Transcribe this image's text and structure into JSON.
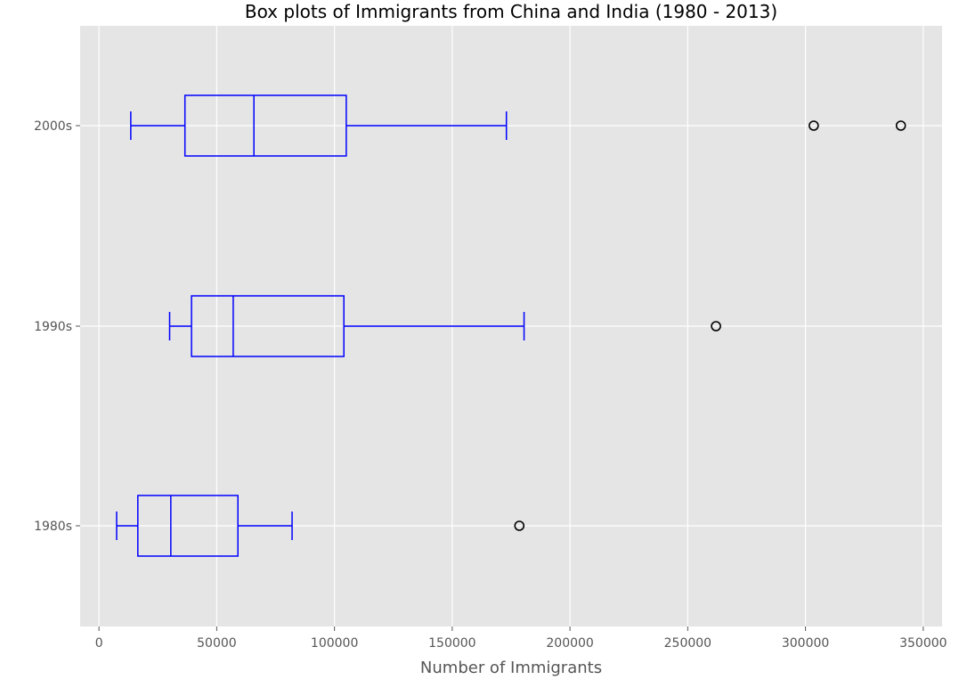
{
  "chart_data": {
    "type": "boxplot",
    "orientation": "horizontal",
    "title": "Box plots of Immigrants from China and India (1980 - 2013)",
    "xlabel": "Number of Immigrants",
    "ylabel": "",
    "xlim": [
      -8000,
      358000
    ],
    "x_ticks": [
      0,
      50000,
      100000,
      150000,
      200000,
      250000,
      300000,
      350000
    ],
    "x_tick_labels": [
      "0",
      "50000",
      "100000",
      "150000",
      "200000",
      "250000",
      "300000",
      "350000"
    ],
    "grid": true,
    "background": "#e5e5e5",
    "grid_color": "#ffffff",
    "box_color": "#0000ff",
    "outlier_color": "#000000",
    "categories": [
      "2000s",
      "1990s",
      "1980s"
    ],
    "boxes": [
      {
        "label": "2000s",
        "whisker_low": 13500,
        "q1": 36500,
        "median": 65800,
        "q3": 105000,
        "whisker_high": 173000,
        "outliers": [
          303500,
          340500
        ]
      },
      {
        "label": "1990s",
        "whisker_low": 30000,
        "q1": 39300,
        "median": 57000,
        "q3": 104000,
        "whisker_high": 180500,
        "outliers": [
          262000
        ]
      },
      {
        "label": "1980s",
        "whisker_low": 7500,
        "q1": 16500,
        "median": 30500,
        "q3": 59000,
        "whisker_high": 82000,
        "outliers": [
          178500
        ]
      }
    ]
  }
}
